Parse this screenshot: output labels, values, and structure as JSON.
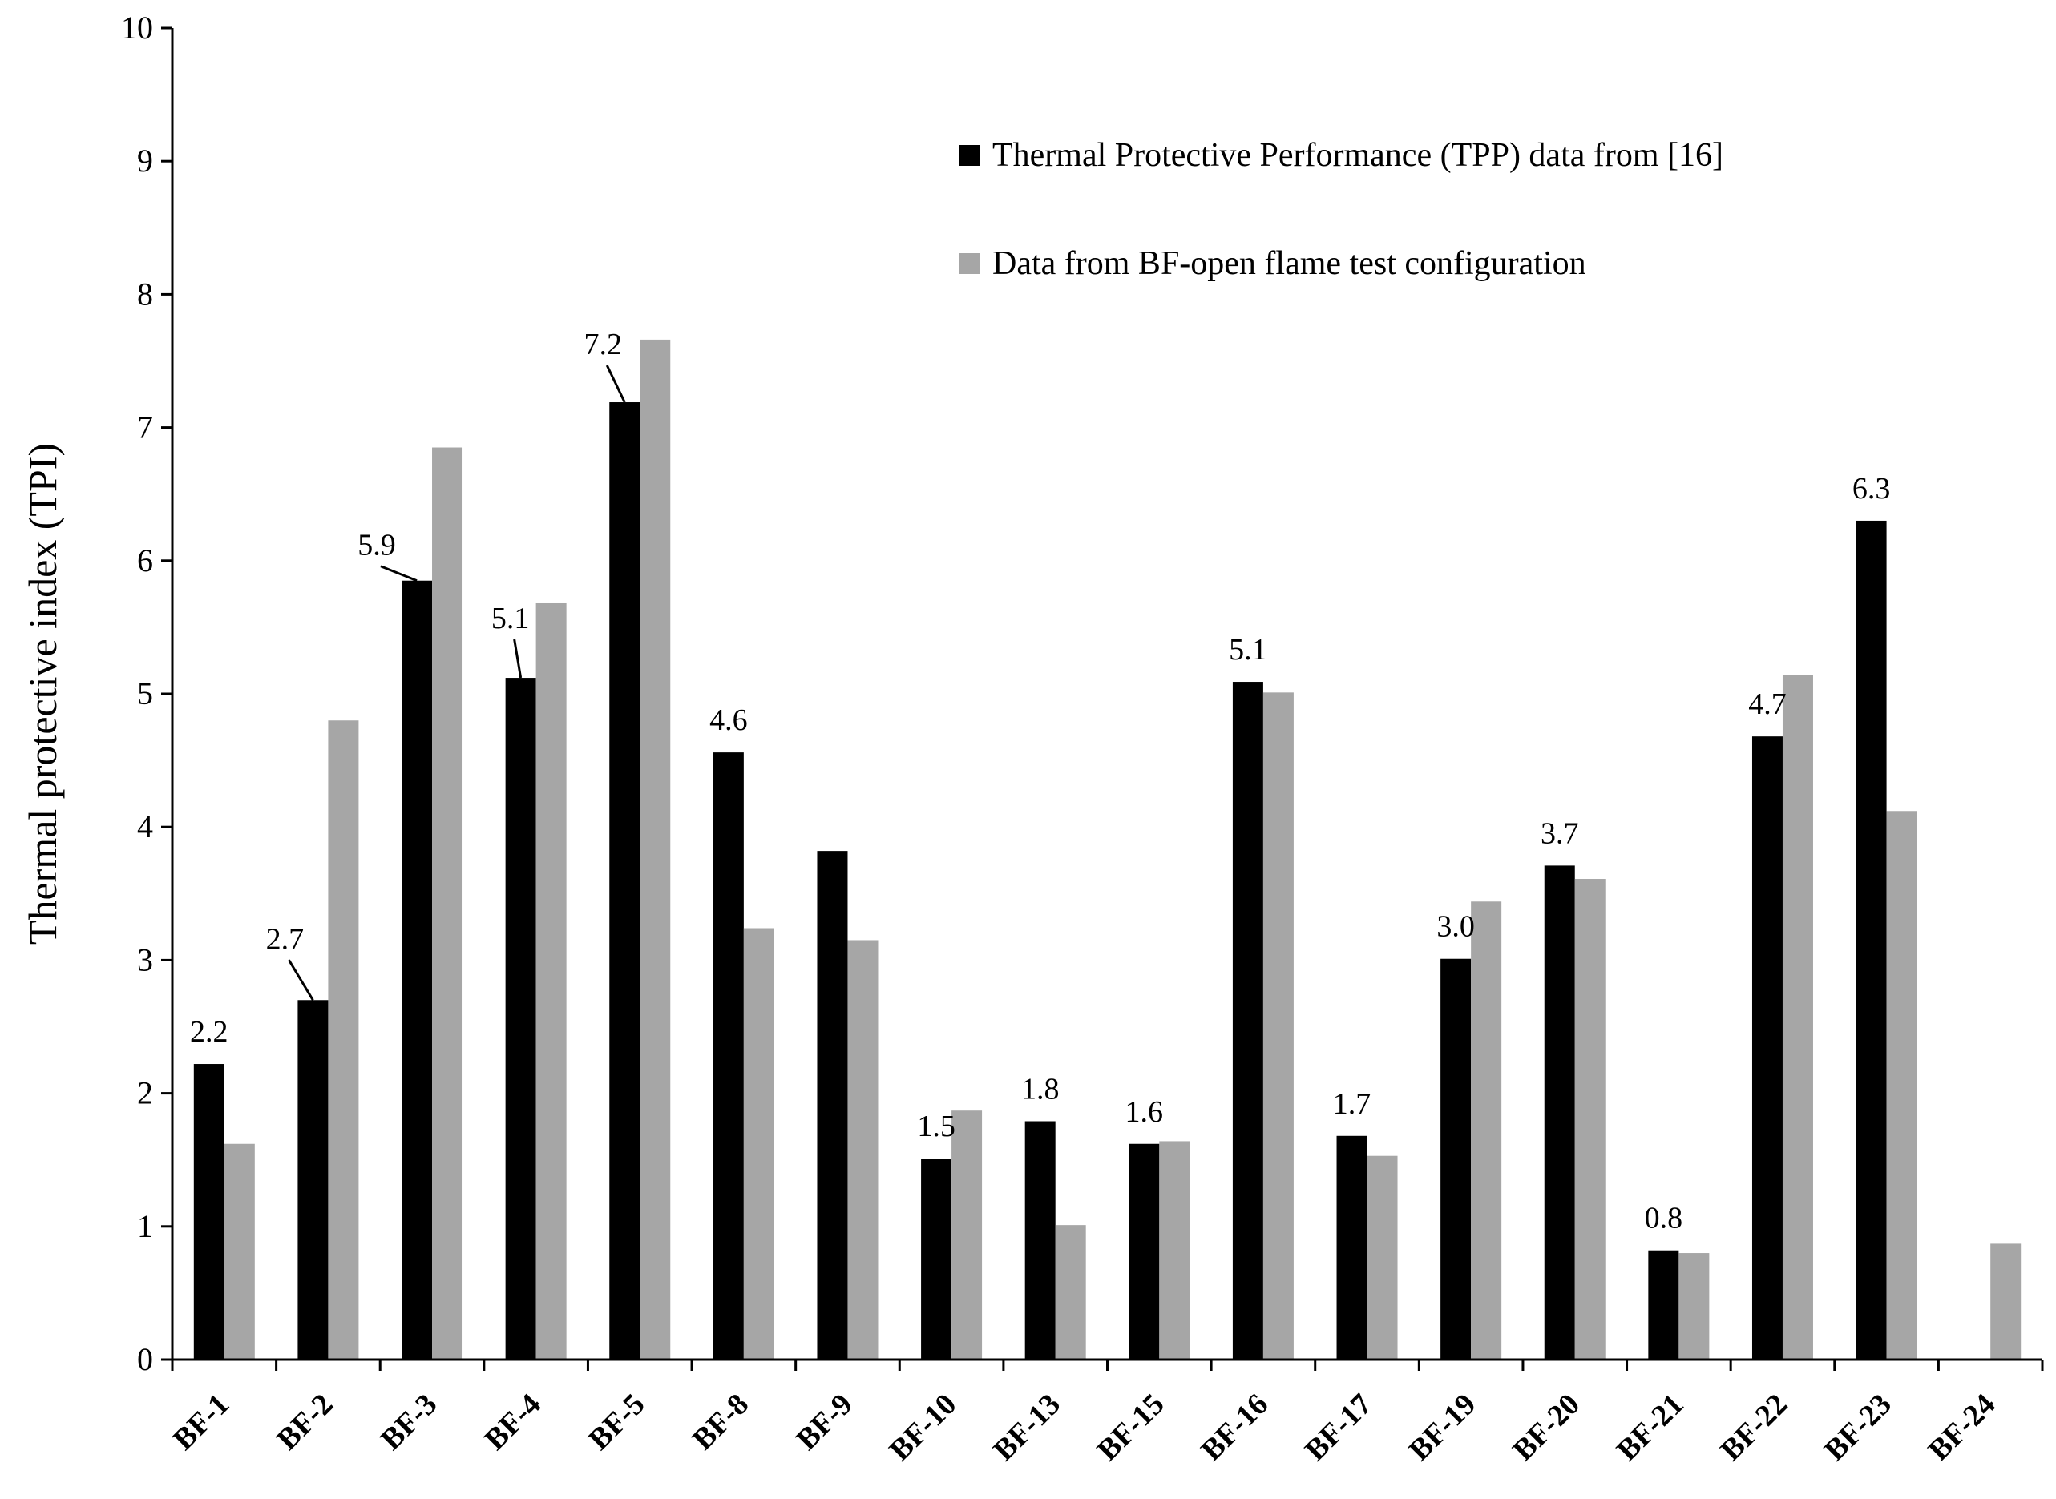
{
  "chart_data": {
    "type": "bar",
    "title": "",
    "xlabel": "",
    "ylabel": "Thermal protective index (TPI)",
    "ylim": [
      0,
      10
    ],
    "yticks": [
      "0",
      "1",
      "2",
      "3",
      "4",
      "5",
      "6",
      "7",
      "8",
      "9",
      "10"
    ],
    "grid": false,
    "legend_position": "top-right",
    "categories": [
      "BF-1",
      "BF-2",
      "BF-3",
      "BF-4",
      "BF-5",
      "BF-8",
      "BF-9",
      "BF-10",
      "BF-13",
      "BF-15",
      "BF-16",
      "BF-17",
      "BF-19",
      "BF-20",
      "BF-21",
      "BF-22",
      "BF-23",
      "BF-24"
    ],
    "series": [
      {
        "name": "Thermal Protective Performance (TPP) data from [16]",
        "color": "#000000",
        "values": [
          2.22,
          2.7,
          5.85,
          5.12,
          7.19,
          4.56,
          3.82,
          1.51,
          1.79,
          1.62,
          5.09,
          1.68,
          3.01,
          3.71,
          0.82,
          4.68,
          6.3,
          null
        ],
        "labels": [
          "2.2",
          "2.7",
          "5.9",
          "5.1",
          "7.2",
          "4.6",
          "",
          "1.5",
          "1.8",
          "1.6",
          "5.1",
          "1.7",
          "3.0",
          "3.7",
          "0.8",
          "4.7",
          "6.3",
          ""
        ]
      },
      {
        "name": "Data from BF-open flame test configuration",
        "color": "#a6a6a6",
        "values": [
          1.62,
          4.8,
          6.85,
          5.68,
          7.66,
          3.24,
          3.15,
          1.87,
          1.01,
          1.64,
          5.01,
          1.53,
          3.44,
          3.61,
          0.8,
          5.14,
          4.12,
          0.87
        ]
      }
    ]
  }
}
